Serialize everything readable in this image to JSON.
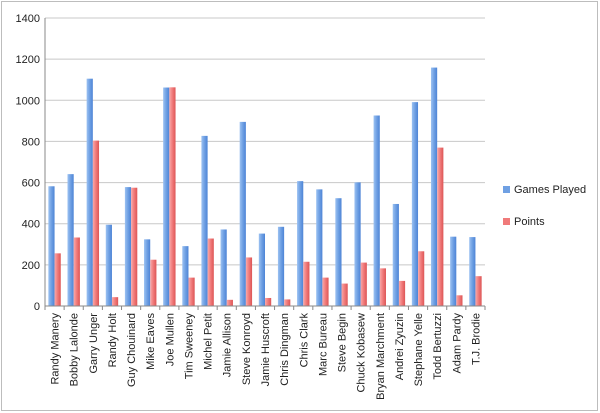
{
  "chart_data": {
    "type": "bar",
    "categories": [
      "Randy Manery",
      "Bobby Lalonde",
      "Garry Unger",
      "Randy Holt",
      "Guy Chouinard",
      "Mike Eaves",
      "Joe Mullen",
      "Tim Sweeney",
      "Michel Petit",
      "Jamie Allison",
      "Steve Konroyd",
      "Jamie Huscroft",
      "Chris Dingman",
      "Chris Clark",
      "Marc Bureau",
      "Steve Begin",
      "Chuck Kobasew",
      "Bryan Marchment",
      "Andrei Zyuzin",
      "Stephane Yelle",
      "Todd Bertuzzi",
      "Adam Pardy",
      "T.J. Brodie"
    ],
    "series": [
      {
        "name": "Games Played",
        "color": "#6fa0e3",
        "values": [
          582,
          641,
          1105,
          395,
          578,
          324,
          1062,
          291,
          827,
          372,
          895,
          352,
          385,
          607,
          567,
          524,
          601,
          926,
          496,
          991,
          1159,
          337,
          335
        ]
      },
      {
        "name": "Points",
        "color": "#f07a7a",
        "values": [
          256,
          333,
          804,
          43,
          575,
          225,
          1063,
          138,
          328,
          30,
          236,
          39,
          32,
          215,
          138,
          109,
          211,
          183,
          122,
          266,
          770,
          52,
          145
        ]
      }
    ],
    "title": "",
    "xlabel": "",
    "ylabel": "",
    "ylim": [
      0,
      1400
    ],
    "yticks": [
      0,
      200,
      400,
      600,
      800,
      1000,
      1200,
      1400
    ],
    "grid": true,
    "legend_position": "right"
  }
}
